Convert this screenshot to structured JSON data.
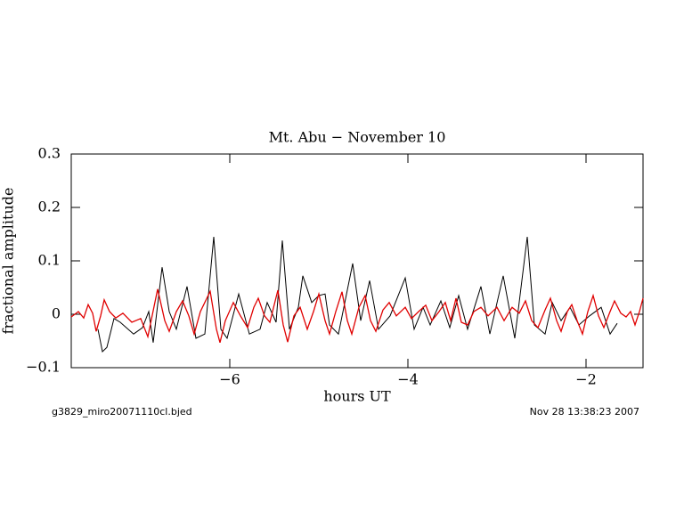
{
  "chart_data": {
    "type": "line",
    "title": "Mt. Abu − November 10",
    "xlabel": "hours UT",
    "ylabel": "fractional amplitude",
    "annotations": [
      "g3829_miro20071110cl.bjed",
      "Nov 28 13:38:23 2007"
    ],
    "xlim": [
      -7.78,
      -1.36
    ],
    "ylim": [
      -0.1,
      0.3
    ],
    "xticks": [
      {
        "value": -6,
        "label": "−6"
      },
      {
        "value": -4,
        "label": "−4"
      },
      {
        "value": -2,
        "label": "−2"
      }
    ],
    "yticks": [
      {
        "value": -0.1,
        "label": "−0.1"
      },
      0,
      0.1,
      0.2,
      0.3
    ],
    "series": [
      {
        "color": "#000000",
        "x": [
          -7.48,
          -7.43,
          -7.38,
          -7.3,
          -7.23,
          -7.08,
          -6.98,
          -6.91,
          -6.86,
          -6.76,
          -6.68,
          -6.6,
          -6.48,
          -6.38,
          -6.28,
          -6.18,
          -6.1,
          -6.03,
          -5.9,
          -5.78,
          -5.66,
          -5.58,
          -5.48,
          -5.41,
          -5.33,
          -5.23,
          -5.18,
          -5.08,
          -5.0,
          -4.93,
          -4.88,
          -4.78,
          -4.62,
          -4.53,
          -4.43,
          -4.33,
          -4.2,
          -4.03,
          -3.93,
          -3.83,
          -3.75,
          -3.63,
          -3.53,
          -3.43,
          -3.33,
          -3.18,
          -3.08,
          -2.93,
          -2.8,
          -2.66,
          -2.58,
          -2.46,
          -2.38,
          -2.28,
          -2.18,
          -2.08,
          -1.96,
          -1.83,
          -1.73,
          -1.65
        ],
        "values": [
          -0.028,
          -0.07,
          -0.062,
          -0.008,
          -0.015,
          -0.037,
          -0.025,
          0.005,
          -0.053,
          0.088,
          0.005,
          -0.028,
          0.052,
          -0.045,
          -0.037,
          0.145,
          -0.028,
          -0.045,
          0.038,
          -0.037,
          -0.028,
          0.022,
          -0.015,
          0.138,
          -0.028,
          0.013,
          0.072,
          0.022,
          0.035,
          0.038,
          -0.02,
          -0.037,
          0.095,
          -0.012,
          0.063,
          -0.028,
          -0.003,
          0.068,
          -0.028,
          0.013,
          -0.02,
          0.025,
          -0.025,
          0.035,
          -0.028,
          0.052,
          -0.037,
          0.072,
          -0.045,
          0.145,
          -0.02,
          -0.037,
          0.022,
          -0.012,
          0.013,
          -0.02,
          -0.003,
          0.013,
          -0.037,
          -0.017
        ]
      },
      {
        "color": "#e00000",
        "x": [
          -7.78,
          -7.7,
          -7.64,
          -7.59,
          -7.54,
          -7.5,
          -7.45,
          -7.41,
          -7.35,
          -7.28,
          -7.2,
          -7.1,
          -7.0,
          -6.92,
          -6.81,
          -6.73,
          -6.68,
          -6.6,
          -6.53,
          -6.46,
          -6.4,
          -6.33,
          -6.22,
          -6.15,
          -6.11,
          -6.05,
          -5.96,
          -5.88,
          -5.8,
          -5.73,
          -5.68,
          -5.61,
          -5.55,
          -5.46,
          -5.4,
          -5.35,
          -5.28,
          -5.21,
          -5.13,
          -5.06,
          -5.0,
          -4.93,
          -4.88,
          -4.81,
          -4.74,
          -4.68,
          -4.63,
          -4.55,
          -4.48,
          -4.42,
          -4.36,
          -4.28,
          -4.21,
          -4.13,
          -4.03,
          -3.96,
          -3.88,
          -3.8,
          -3.73,
          -3.65,
          -3.58,
          -3.52,
          -3.46,
          -3.4,
          -3.33,
          -3.26,
          -3.18,
          -3.1,
          -3.0,
          -2.92,
          -2.83,
          -2.75,
          -2.68,
          -2.61,
          -2.54,
          -2.46,
          -2.4,
          -2.33,
          -2.28,
          -2.21,
          -2.16,
          -2.1,
          -2.04,
          -1.98,
          -1.92,
          -1.86,
          -1.8,
          -1.73,
          -1.68,
          -1.61,
          -1.55,
          -1.5,
          -1.45,
          -1.4,
          -1.36
        ],
        "values": [
          -0.005,
          0.005,
          -0.007,
          0.018,
          0.002,
          -0.032,
          -0.003,
          0.027,
          0.005,
          -0.007,
          0.002,
          -0.015,
          -0.008,
          -0.042,
          0.047,
          -0.012,
          -0.032,
          0.005,
          0.025,
          -0.003,
          -0.037,
          0.005,
          0.043,
          -0.028,
          -0.053,
          -0.012,
          0.022,
          -0.003,
          -0.025,
          0.013,
          0.03,
          -0.003,
          -0.015,
          0.045,
          -0.02,
          -0.052,
          -0.003,
          0.013,
          -0.028,
          0.005,
          0.038,
          -0.012,
          -0.037,
          0.005,
          0.042,
          -0.012,
          -0.037,
          0.013,
          0.035,
          -0.012,
          -0.032,
          0.008,
          0.022,
          -0.003,
          0.013,
          -0.008,
          0.005,
          0.017,
          -0.012,
          0.005,
          0.022,
          -0.012,
          0.03,
          -0.015,
          -0.02,
          0.005,
          0.013,
          -0.003,
          0.013,
          -0.012,
          0.013,
          0.002,
          0.025,
          -0.012,
          -0.025,
          0.008,
          0.03,
          -0.012,
          -0.032,
          0.005,
          0.018,
          -0.012,
          -0.037,
          0.005,
          0.035,
          -0.003,
          -0.025,
          0.005,
          0.025,
          0.002,
          -0.005,
          0.005,
          -0.02,
          0.005,
          0.03
        ]
      }
    ]
  }
}
